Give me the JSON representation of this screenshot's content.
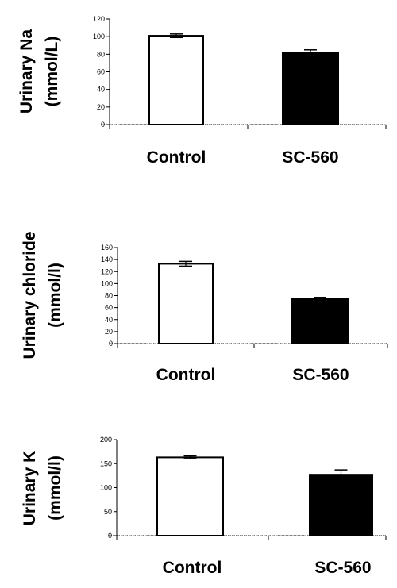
{
  "chart_data": [
    {
      "type": "bar",
      "ylabel": [
        "Urinary Na",
        "(mmol/L)"
      ],
      "categories": [
        "Control",
        "SC-560"
      ],
      "values": [
        101,
        82
      ],
      "errors": [
        2,
        3
      ],
      "bar_colors": [
        "#ffffff",
        "#000000"
      ],
      "ylim": [
        0,
        120
      ],
      "yticks": [
        0,
        20,
        40,
        60,
        80,
        100,
        120
      ],
      "grid": false
    },
    {
      "type": "bar",
      "ylabel": [
        "Urinary chloride",
        "(mmol/l)"
      ],
      "categories": [
        "Control",
        "SC-560"
      ],
      "values": [
        133,
        75
      ],
      "errors": [
        4,
        2
      ],
      "bar_colors": [
        "#ffffff",
        "#000000"
      ],
      "ylim": [
        0,
        160
      ],
      "yticks": [
        0,
        20,
        40,
        60,
        80,
        100,
        120,
        140,
        160
      ],
      "grid": false
    },
    {
      "type": "bar",
      "ylabel": [
        "Urinary K",
        "(mmol/l)"
      ],
      "categories": [
        "Control",
        "SC-560"
      ],
      "values": [
        163,
        127
      ],
      "errors": [
        3,
        10
      ],
      "bar_colors": [
        "#ffffff",
        "#000000"
      ],
      "ylim": [
        0,
        200
      ],
      "yticks": [
        0,
        50,
        100,
        150,
        200
      ],
      "grid": false
    }
  ]
}
